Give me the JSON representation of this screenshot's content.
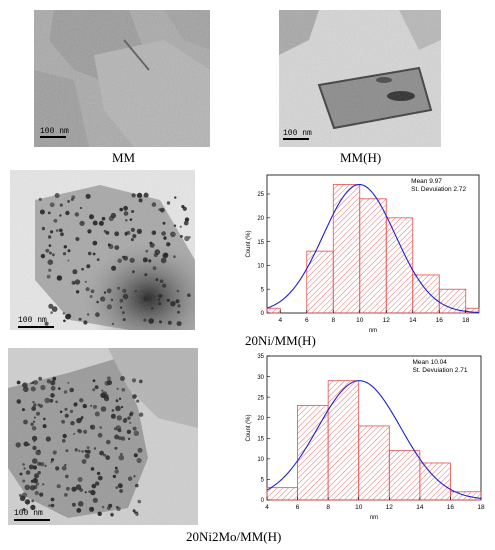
{
  "figure": {
    "panels": [
      {
        "id": "mm",
        "caption": "MM",
        "scalebar": "100 nm"
      },
      {
        "id": "mmh",
        "caption": "MM(H)",
        "scalebar": "100 nm"
      },
      {
        "id": "ni",
        "caption": "20Ni/MM(H)",
        "scalebar": "100 nm"
      },
      {
        "id": "nimo",
        "caption": "20Ni2Mo/MM(H)",
        "scalebar": "100 nm"
      }
    ]
  },
  "chart_data": [
    {
      "type": "bar",
      "title": "",
      "xlabel": "nm",
      "ylabel": "Count (%)",
      "categories": [
        "3-4",
        "4-6",
        "6-8",
        "8-10",
        "10-12",
        "12-14",
        "14-16",
        "16-18",
        "18-19"
      ],
      "bins": [
        [
          3,
          4
        ],
        [
          4,
          6
        ],
        [
          6,
          8
        ],
        [
          8,
          10
        ],
        [
          10,
          12
        ],
        [
          12,
          14
        ],
        [
          14,
          16
        ],
        [
          16,
          18
        ],
        [
          18,
          19
        ]
      ],
      "values": [
        1,
        0,
        13,
        27,
        24,
        20,
        8,
        5,
        1
      ],
      "fit_curve": {
        "type": "gaussian",
        "mean": 9.97,
        "sd": 2.72,
        "peak": 27
      },
      "xlim": [
        3,
        19
      ],
      "ylim": [
        0,
        29
      ],
      "xticks": [
        4,
        6,
        8,
        10,
        12,
        14,
        16,
        18
      ],
      "yticks": [
        0,
        5,
        10,
        15,
        20,
        25
      ],
      "annotation": [
        "Mean 9.97",
        "St. Devuiation 2.72"
      ],
      "colors": {
        "bar_edge": "#e05050",
        "hatch": "#e05050",
        "curve": "#2020d0"
      }
    },
    {
      "type": "bar",
      "title": "",
      "xlabel": "nm",
      "ylabel": "Count (%)",
      "categories": [
        "4-6",
        "6-8",
        "8-10",
        "10-12",
        "12-14",
        "14-16",
        "16-18"
      ],
      "bins": [
        [
          4,
          6
        ],
        [
          6,
          8
        ],
        [
          8,
          10
        ],
        [
          10,
          12
        ],
        [
          12,
          14
        ],
        [
          14,
          16
        ],
        [
          16,
          18
        ]
      ],
      "values": [
        3,
        23,
        29,
        18,
        12,
        9,
        2
      ],
      "fit_curve": {
        "type": "gaussian",
        "mean": 10.04,
        "sd": 2.71,
        "peak": 29
      },
      "xlim": [
        4,
        18
      ],
      "ylim": [
        0,
        35
      ],
      "xticks": [
        4,
        6,
        8,
        10,
        12,
        14,
        16,
        18
      ],
      "yticks": [
        0,
        5,
        10,
        15,
        20,
        25,
        30,
        35
      ],
      "annotation": [
        "Mean 10.04",
        "St. Devuiation 2.71"
      ],
      "colors": {
        "bar_edge": "#e05050",
        "hatch": "#e05050",
        "curve": "#2020d0"
      }
    }
  ]
}
